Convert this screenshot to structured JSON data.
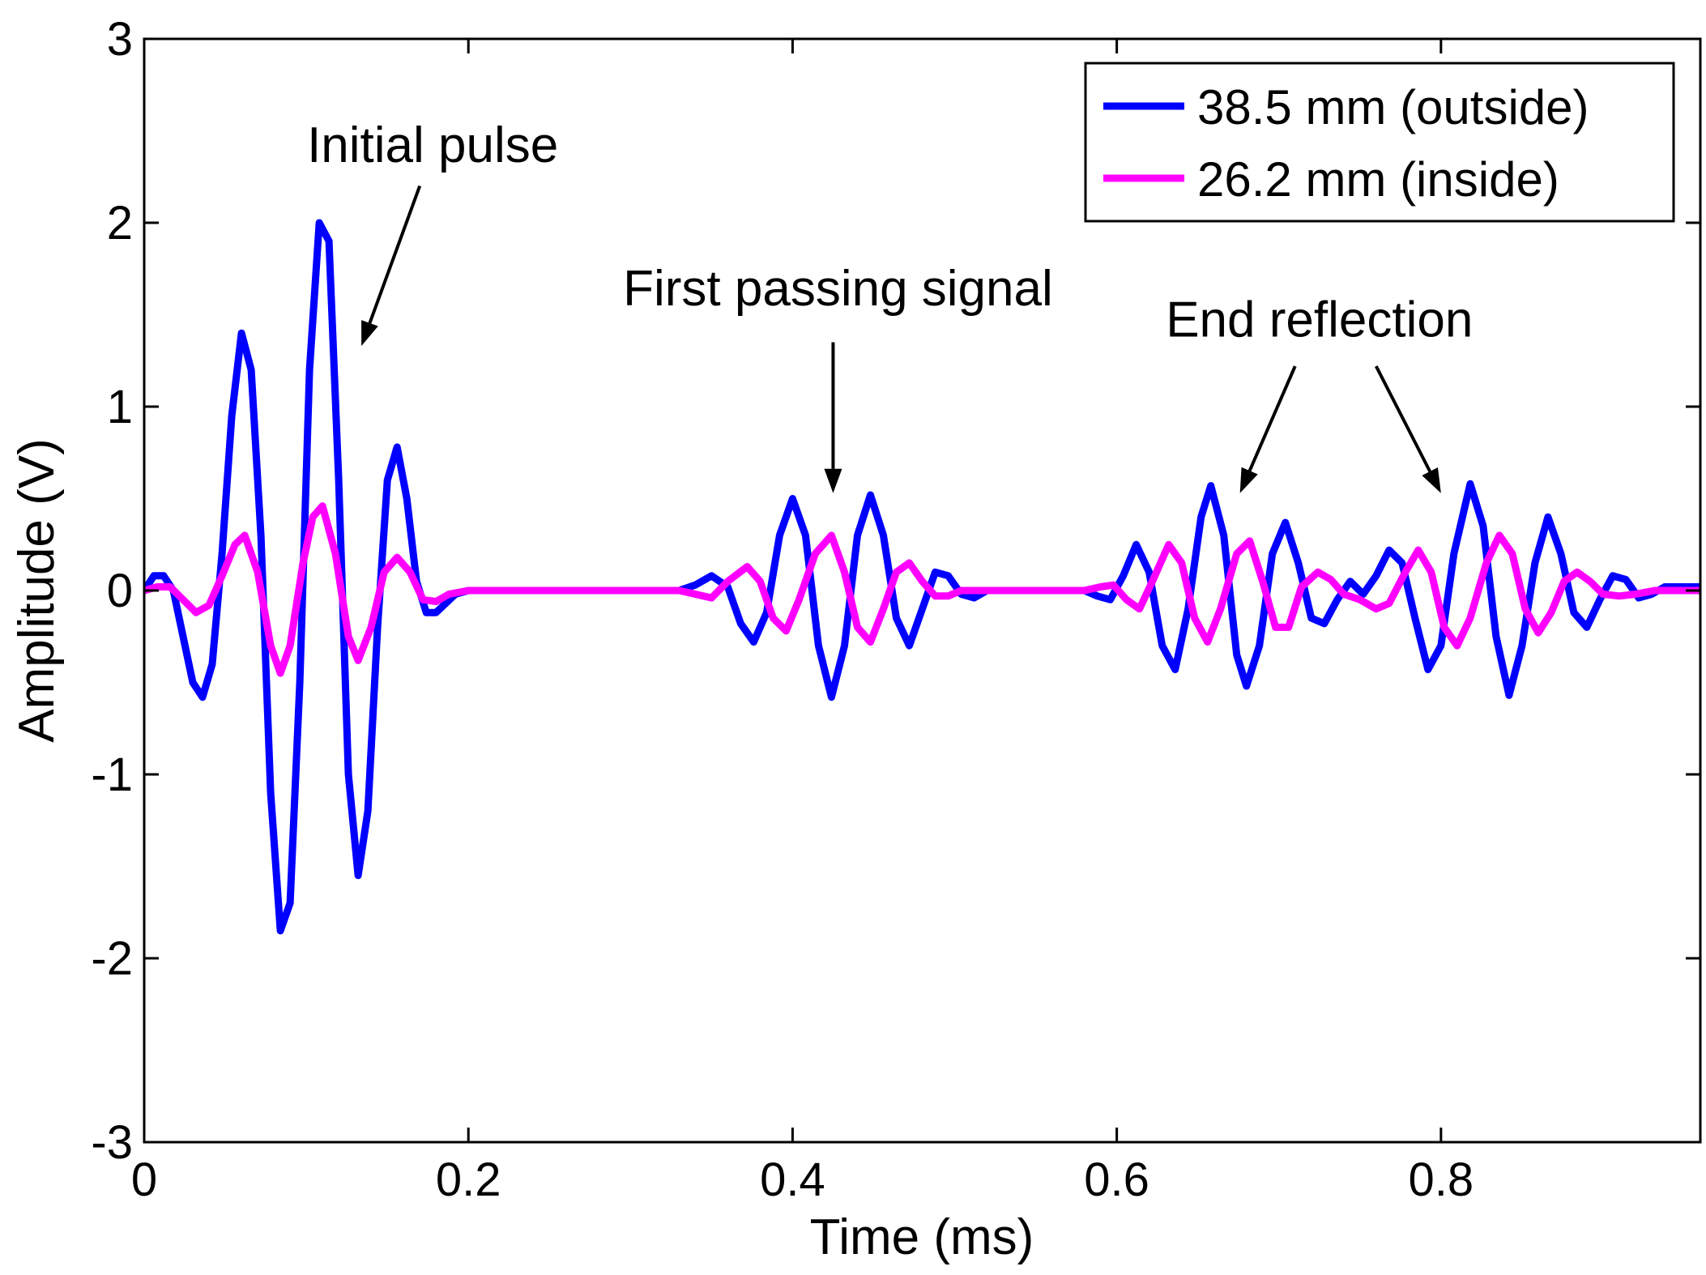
{
  "chart_data": {
    "type": "line",
    "title": "",
    "xlabel": "Time (ms)",
    "ylabel": "Amplitude (V)",
    "xlim": [
      0,
      0.96
    ],
    "ylim": [
      -3,
      3
    ],
    "xticks": [
      0,
      0.2,
      0.4,
      0.6,
      0.8
    ],
    "xtick_labels": [
      "0",
      "0.2",
      "0.4",
      "0.6",
      "0.8"
    ],
    "yticks": [
      -3,
      -2,
      -1,
      0,
      1,
      2,
      3
    ],
    "ytick_labels": [
      "-3",
      "-2",
      "-1",
      "0",
      "1",
      "2",
      "3"
    ],
    "grid": false,
    "legend_position": "top-right",
    "series": [
      {
        "name": "38.5 mm (outside)",
        "color": "#0000ff",
        "points": [
          [
            0,
            0
          ],
          [
            0.006,
            0.08
          ],
          [
            0.012,
            0.08
          ],
          [
            0.018,
            0.0
          ],
          [
            0.024,
            -0.25
          ],
          [
            0.03,
            -0.5
          ],
          [
            0.036,
            -0.58
          ],
          [
            0.042,
            -0.4
          ],
          [
            0.048,
            0.2
          ],
          [
            0.054,
            0.95
          ],
          [
            0.06,
            1.4
          ],
          [
            0.066,
            1.2
          ],
          [
            0.072,
            0.3
          ],
          [
            0.078,
            -1.1
          ],
          [
            0.084,
            -1.85
          ],
          [
            0.09,
            -1.7
          ],
          [
            0.096,
            -0.5
          ],
          [
            0.102,
            1.2
          ],
          [
            0.108,
            2.0
          ],
          [
            0.114,
            1.9
          ],
          [
            0.12,
            0.6
          ],
          [
            0.126,
            -1.0
          ],
          [
            0.132,
            -1.55
          ],
          [
            0.138,
            -1.2
          ],
          [
            0.144,
            -0.2
          ],
          [
            0.15,
            0.6
          ],
          [
            0.156,
            0.78
          ],
          [
            0.162,
            0.5
          ],
          [
            0.168,
            0.05
          ],
          [
            0.174,
            -0.12
          ],
          [
            0.18,
            -0.12
          ],
          [
            0.186,
            -0.07
          ],
          [
            0.192,
            -0.02
          ],
          [
            0.2,
            0
          ],
          [
            0.33,
            0
          ],
          [
            0.34,
            0.03
          ],
          [
            0.35,
            0.08
          ],
          [
            0.36,
            0.02
          ],
          [
            0.368,
            -0.18
          ],
          [
            0.376,
            -0.28
          ],
          [
            0.384,
            -0.12
          ],
          [
            0.392,
            0.3
          ],
          [
            0.4,
            0.5
          ],
          [
            0.408,
            0.3
          ],
          [
            0.416,
            -0.3
          ],
          [
            0.424,
            -0.58
          ],
          [
            0.432,
            -0.3
          ],
          [
            0.44,
            0.3
          ],
          [
            0.448,
            0.52
          ],
          [
            0.456,
            0.3
          ],
          [
            0.464,
            -0.15
          ],
          [
            0.472,
            -0.3
          ],
          [
            0.48,
            -0.1
          ],
          [
            0.488,
            0.1
          ],
          [
            0.496,
            0.08
          ],
          [
            0.504,
            -0.02
          ],
          [
            0.512,
            -0.04
          ],
          [
            0.52,
            0
          ],
          [
            0.58,
            0
          ],
          [
            0.588,
            -0.03
          ],
          [
            0.596,
            -0.05
          ],
          [
            0.604,
            0.08
          ],
          [
            0.612,
            0.25
          ],
          [
            0.62,
            0.1
          ],
          [
            0.628,
            -0.3
          ],
          [
            0.636,
            -0.43
          ],
          [
            0.644,
            -0.1
          ],
          [
            0.652,
            0.4
          ],
          [
            0.658,
            0.57
          ],
          [
            0.666,
            0.3
          ],
          [
            0.674,
            -0.35
          ],
          [
            0.68,
            -0.52
          ],
          [
            0.688,
            -0.3
          ],
          [
            0.696,
            0.2
          ],
          [
            0.704,
            0.37
          ],
          [
            0.712,
            0.15
          ],
          [
            0.72,
            -0.15
          ],
          [
            0.728,
            -0.18
          ],
          [
            0.736,
            -0.05
          ],
          [
            0.744,
            0.05
          ],
          [
            0.752,
            -0.02
          ],
          [
            0.76,
            0.08
          ],
          [
            0.768,
            0.22
          ],
          [
            0.776,
            0.15
          ],
          [
            0.784,
            -0.15
          ],
          [
            0.792,
            -0.43
          ],
          [
            0.8,
            -0.3
          ],
          [
            0.808,
            0.2
          ],
          [
            0.818,
            0.58
          ],
          [
            0.826,
            0.35
          ],
          [
            0.834,
            -0.25
          ],
          [
            0.842,
            -0.57
          ],
          [
            0.85,
            -0.3
          ],
          [
            0.858,
            0.15
          ],
          [
            0.866,
            0.4
          ],
          [
            0.874,
            0.2
          ],
          [
            0.882,
            -0.12
          ],
          [
            0.89,
            -0.2
          ],
          [
            0.898,
            -0.05
          ],
          [
            0.906,
            0.08
          ],
          [
            0.914,
            0.06
          ],
          [
            0.922,
            -0.04
          ],
          [
            0.93,
            -0.02
          ],
          [
            0.938,
            0.02
          ],
          [
            0.946,
            0.02
          ],
          [
            0.96,
            0.02
          ]
        ]
      },
      {
        "name": "26.2 mm (inside)",
        "color": "#ff00ff",
        "points": [
          [
            0,
            0
          ],
          [
            0.008,
            0.02
          ],
          [
            0.016,
            0.02
          ],
          [
            0.024,
            -0.05
          ],
          [
            0.032,
            -0.12
          ],
          [
            0.04,
            -0.08
          ],
          [
            0.048,
            0.08
          ],
          [
            0.056,
            0.25
          ],
          [
            0.062,
            0.3
          ],
          [
            0.07,
            0.1
          ],
          [
            0.078,
            -0.3
          ],
          [
            0.084,
            -0.45
          ],
          [
            0.09,
            -0.3
          ],
          [
            0.098,
            0.15
          ],
          [
            0.104,
            0.4
          ],
          [
            0.11,
            0.46
          ],
          [
            0.118,
            0.2
          ],
          [
            0.126,
            -0.25
          ],
          [
            0.132,
            -0.38
          ],
          [
            0.14,
            -0.2
          ],
          [
            0.148,
            0.1
          ],
          [
            0.156,
            0.18
          ],
          [
            0.164,
            0.1
          ],
          [
            0.172,
            -0.05
          ],
          [
            0.18,
            -0.06
          ],
          [
            0.188,
            -0.02
          ],
          [
            0.2,
            0
          ],
          [
            0.33,
            0
          ],
          [
            0.34,
            -0.02
          ],
          [
            0.35,
            -0.04
          ],
          [
            0.36,
            0.05
          ],
          [
            0.372,
            0.13
          ],
          [
            0.38,
            0.05
          ],
          [
            0.388,
            -0.15
          ],
          [
            0.396,
            -0.22
          ],
          [
            0.404,
            -0.05
          ],
          [
            0.414,
            0.2
          ],
          [
            0.424,
            0.3
          ],
          [
            0.432,
            0.1
          ],
          [
            0.44,
            -0.2
          ],
          [
            0.448,
            -0.28
          ],
          [
            0.456,
            -0.1
          ],
          [
            0.464,
            0.1
          ],
          [
            0.472,
            0.15
          ],
          [
            0.48,
            0.05
          ],
          [
            0.488,
            -0.03
          ],
          [
            0.496,
            -0.03
          ],
          [
            0.504,
            0
          ],
          [
            0.58,
            0
          ],
          [
            0.59,
            0.02
          ],
          [
            0.598,
            0.03
          ],
          [
            0.606,
            -0.05
          ],
          [
            0.614,
            -0.1
          ],
          [
            0.622,
            0.05
          ],
          [
            0.632,
            0.25
          ],
          [
            0.64,
            0.15
          ],
          [
            0.648,
            -0.15
          ],
          [
            0.656,
            -0.28
          ],
          [
            0.664,
            -0.1
          ],
          [
            0.674,
            0.2
          ],
          [
            0.682,
            0.27
          ],
          [
            0.69,
            0.05
          ],
          [
            0.698,
            -0.2
          ],
          [
            0.706,
            -0.2
          ],
          [
            0.714,
            0.02
          ],
          [
            0.724,
            0.1
          ],
          [
            0.732,
            0.06
          ],
          [
            0.74,
            -0.02
          ],
          [
            0.75,
            -0.05
          ],
          [
            0.76,
            -0.1
          ],
          [
            0.768,
            -0.07
          ],
          [
            0.778,
            0.1
          ],
          [
            0.786,
            0.22
          ],
          [
            0.794,
            0.1
          ],
          [
            0.802,
            -0.2
          ],
          [
            0.81,
            -0.3
          ],
          [
            0.818,
            -0.15
          ],
          [
            0.828,
            0.15
          ],
          [
            0.836,
            0.3
          ],
          [
            0.844,
            0.2
          ],
          [
            0.852,
            -0.1
          ],
          [
            0.86,
            -0.23
          ],
          [
            0.868,
            -0.12
          ],
          [
            0.876,
            0.05
          ],
          [
            0.884,
            0.1
          ],
          [
            0.892,
            0.05
          ],
          [
            0.9,
            -0.02
          ],
          [
            0.91,
            -0.03
          ],
          [
            0.92,
            -0.02
          ],
          [
            0.932,
            0.0
          ],
          [
            0.944,
            0.0
          ],
          [
            0.96,
            0.0
          ]
        ]
      }
    ],
    "annotations": [
      {
        "text": "Initial pulse",
        "label_x": 0.178,
        "label_y": 2.33,
        "arrow_from": [
          0.17,
          2.2
        ],
        "arrow_to": [
          0.134,
          1.33
        ]
      },
      {
        "text": "First passing signal",
        "label_x": 0.428,
        "label_y": 1.55,
        "arrow_from": [
          0.425,
          1.35
        ],
        "arrow_to": [
          0.425,
          0.53
        ]
      },
      {
        "text": "End reflection",
        "label_x": 0.725,
        "label_y": 1.38,
        "arrow_from": [
          0.71,
          1.22
        ],
        "arrow_to": [
          0.676,
          0.53
        ]
      },
      {
        "text": "",
        "label_x": 0,
        "label_y": 0,
        "arrow_from": [
          0.76,
          1.22
        ],
        "arrow_to": [
          0.8,
          0.53
        ]
      }
    ]
  }
}
